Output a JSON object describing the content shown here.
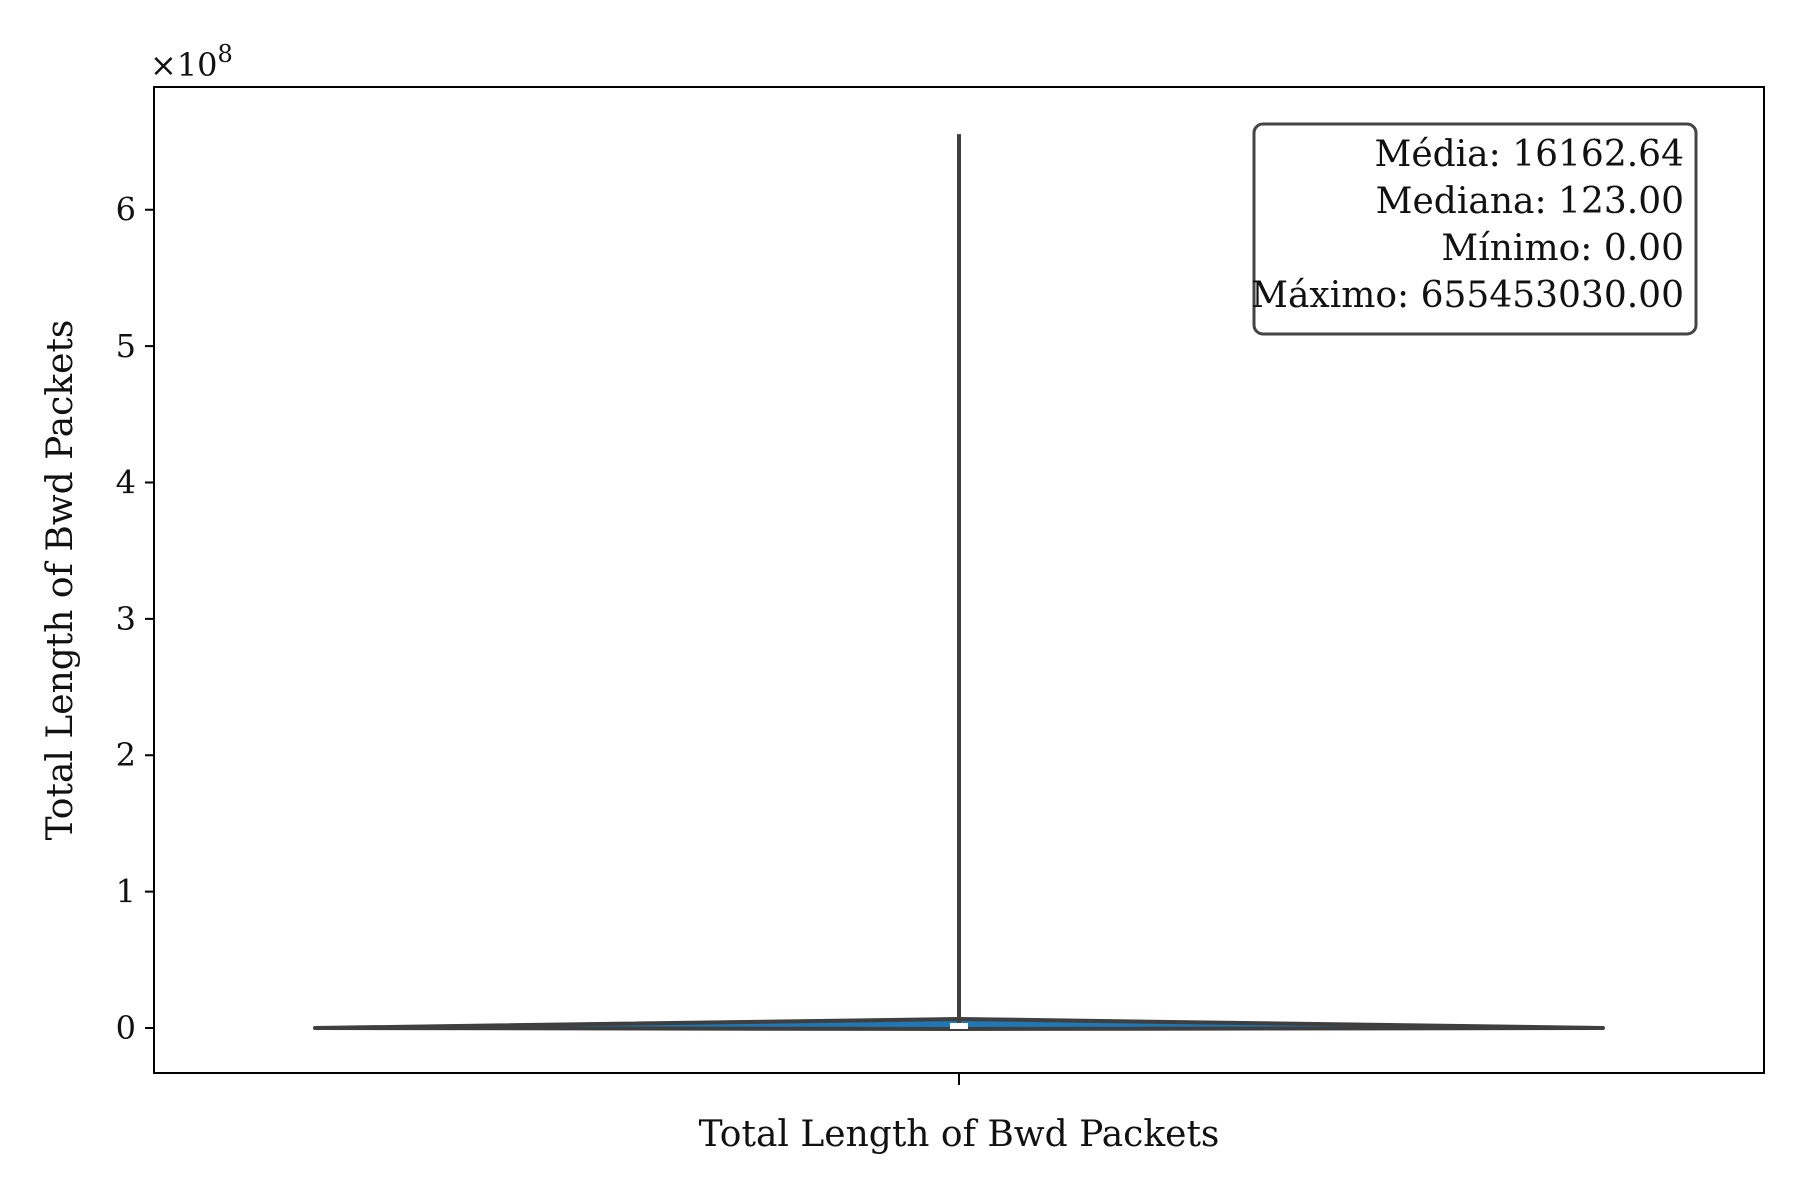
{
  "chart_data": {
    "type": "violin",
    "xlabel": "Total Length of Bwd Packets",
    "ylabel": "Total Length of Bwd Packets",
    "y_offset_label": "×10",
    "y_offset_exponent": "8",
    "ylim": [
      -33000000,
      690000000
    ],
    "y_tick_values": [
      0,
      100000000,
      200000000,
      300000000,
      400000000,
      500000000,
      600000000
    ],
    "y_tick_labels": [
      "0",
      "1",
      "2",
      "3",
      "4",
      "5",
      "6"
    ],
    "categories": [
      ""
    ],
    "series": [
      {
        "min": 0,
        "max": 655453030,
        "median": 123,
        "mean": 16162.64,
        "color": "#1f77b4"
      }
    ],
    "stats_box": {
      "lines": [
        "Média: 16162.64",
        "Mediana: 123.00",
        "Mínimo: 0.00",
        "Máximo: 655453030.00"
      ],
      "position": "top-right"
    },
    "grid": false
  }
}
